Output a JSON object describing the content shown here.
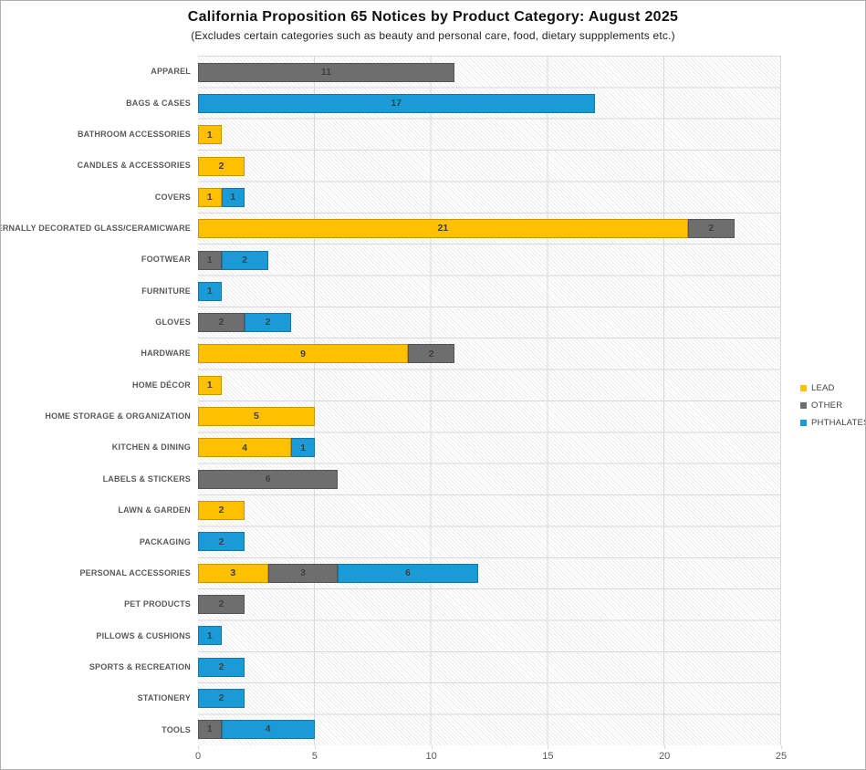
{
  "chart_data": {
    "type": "bar",
    "orientation": "horizontal",
    "stacked": true,
    "title": "California Proposition 65 Notices by Product Category: August 2025",
    "subtitle": "(Excludes certain categories such as beauty and personal care, food, dietary suppplements etc.)",
    "categories": [
      "APPAREL",
      "BAGS & CASES",
      "BATHROOM ACCESSORIES",
      "CANDLES & ACCESSORIES",
      "COVERS",
      "EXTERNALLY DECORATED GLASS/CERAMICWARE",
      "FOOTWEAR",
      "FURNITURE",
      "GLOVES",
      "HARDWARE",
      "HOME DÉCOR",
      "HOME STORAGE & ORGANIZATION",
      "KITCHEN & DINING",
      "LABELS & STICKERS",
      "LAWN & GARDEN",
      "PACKAGING",
      "PERSONAL ACCESSORIES",
      "PET PRODUCTS",
      "PILLOWS & CUSHIONS",
      "SPORTS & RECREATION",
      "STATIONERY",
      "TOOLS"
    ],
    "series": [
      {
        "name": "LEAD",
        "color": "#FFC000",
        "values": [
          0,
          0,
          1,
          2,
          1,
          21,
          0,
          0,
          0,
          9,
          1,
          5,
          4,
          0,
          2,
          0,
          3,
          0,
          0,
          0,
          0,
          0
        ]
      },
      {
        "name": "OTHER",
        "color": "#6E6E6E",
        "values": [
          11,
          0,
          0,
          0,
          0,
          2,
          1,
          0,
          2,
          2,
          0,
          0,
          0,
          6,
          0,
          0,
          3,
          2,
          0,
          0,
          0,
          1
        ]
      },
      {
        "name": "PHTHALATES",
        "color": "#1A9BD7",
        "values": [
          0,
          17,
          0,
          0,
          1,
          0,
          2,
          1,
          2,
          0,
          0,
          0,
          1,
          0,
          0,
          2,
          6,
          0,
          1,
          2,
          2,
          4
        ]
      }
    ],
    "xlim": [
      0,
      25
    ],
    "x_ticks": [
      0,
      5,
      10,
      15,
      20,
      25
    ],
    "legend_position": "right",
    "grid": true,
    "colors": {
      "gridline": "#D9D9D9",
      "axis_label": "#595959",
      "value_label": "#3F3F3F"
    }
  }
}
